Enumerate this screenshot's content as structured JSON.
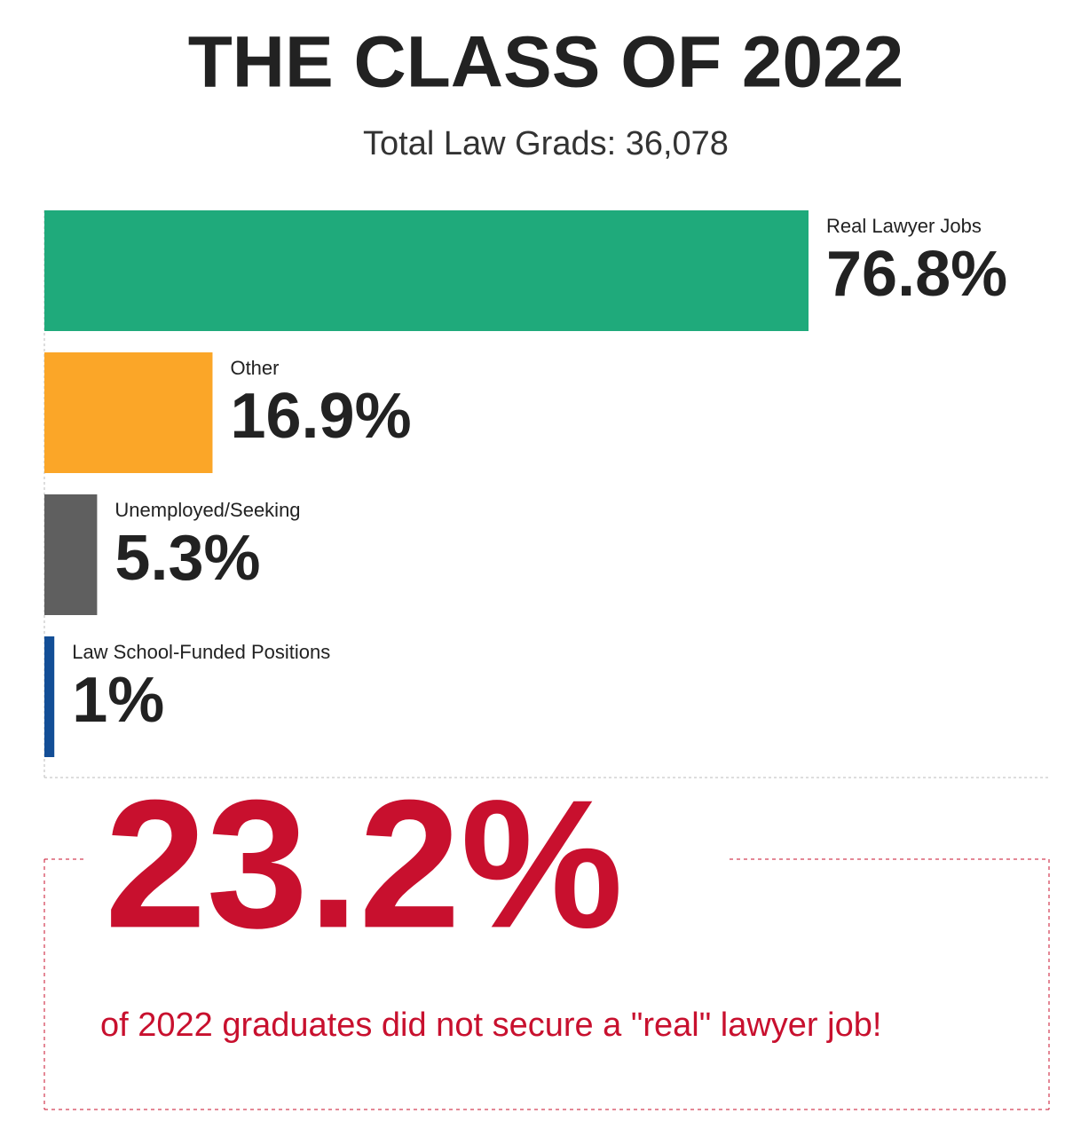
{
  "chart_data": {
    "type": "bar",
    "orientation": "horizontal",
    "title": "THE CLASS OF 2022",
    "subtitle": "Total Law Grads: 36,078",
    "categories": [
      "Real Lawyer Jobs",
      "Other",
      "Unemployed/Seeking",
      "Law School-Funded Positions"
    ],
    "values": [
      76.8,
      16.9,
      5.3,
      1
    ],
    "value_labels": [
      "76.8%",
      "16.9%",
      "5.3%",
      "1%"
    ],
    "colors": [
      "#1faa7b",
      "#fba628",
      "#5f5f5f",
      "#134e96"
    ],
    "annotation": {
      "highlight": "23.2%",
      "text": "of 2022 graduates did not secure a \"real\" lawyer job!"
    }
  }
}
